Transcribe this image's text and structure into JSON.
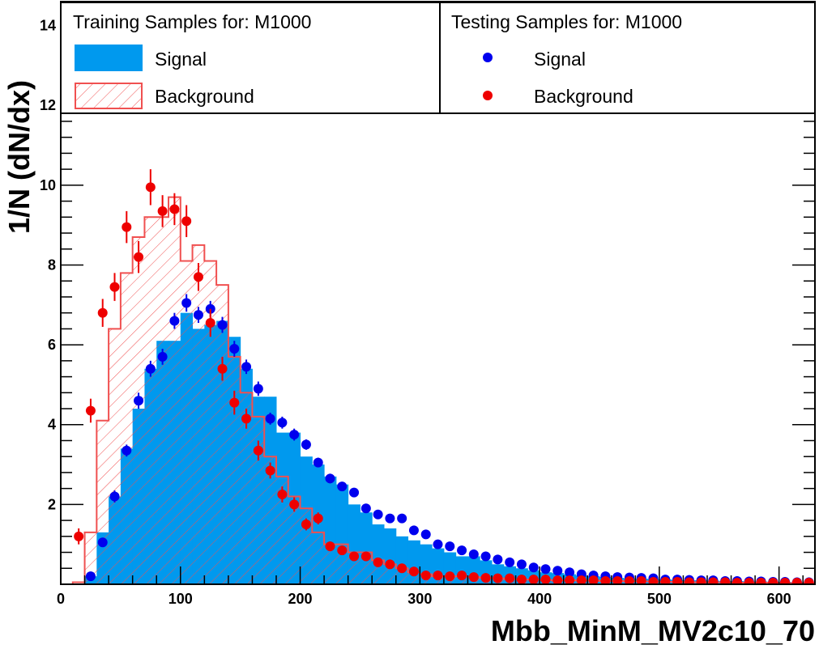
{
  "chart_data": {
    "type": "histogram",
    "xlabel": "Mbb_MinM_MV2c10_70",
    "ylabel": "1/N (dN/dx)",
    "xlim": [
      0,
      630
    ],
    "ylim": [
      0,
      14.6
    ],
    "x_ticks": [
      "0",
      "100",
      "200",
      "300",
      "400",
      "500",
      "600"
    ],
    "y_ticks": [
      "2",
      "4",
      "6",
      "8",
      "10",
      "12",
      "14"
    ],
    "bin_width": 10,
    "legend": {
      "training_title": "Training Samples for: M1000",
      "testing_title": "Testing Samples for: M1000",
      "training_entries": [
        "Signal",
        "Background"
      ],
      "testing_entries": [
        "Signal",
        "Background"
      ]
    },
    "colors": {
      "signal_fill": "#0099ee",
      "background_line": "#f05050",
      "testing_signal": "#0000ee",
      "testing_background": "#ee0000"
    },
    "training_signal": {
      "bin_edges_start": 20,
      "values": [
        0.2,
        1.3,
        2.2,
        3.4,
        4.4,
        5.4,
        6.1,
        6.1,
        6.8,
        6.4,
        6.5,
        6.6,
        6.2,
        5.4,
        4.7,
        4.7,
        3.8,
        3.8,
        3.2,
        3.0,
        2.7,
        2.5,
        2.0,
        1.8,
        1.5,
        1.4,
        1.2,
        1.1,
        1.0,
        0.9,
        0.8,
        0.7,
        0.7,
        0.6,
        0.5,
        0.45,
        0.4,
        0.35,
        0.3,
        0.28,
        0.25,
        0.22,
        0.2,
        0.18,
        0.16,
        0.15,
        0.14,
        0.13,
        0.12,
        0.11,
        0.1,
        0.1,
        0.09,
        0.08,
        0.08,
        0.07,
        0.07,
        0.06,
        0.06,
        0.05,
        0.05
      ]
    },
    "training_background": {
      "bin_edges_start": 10,
      "values": [
        0.05,
        1.3,
        4.1,
        6.4,
        7.8,
        8.7,
        9.2,
        9.2,
        9.7,
        8.1,
        8.5,
        8.1,
        7.5,
        5.7,
        4.8,
        4.2,
        3.2,
        2.7,
        2.2,
        1.9,
        1.3,
        1.0,
        1.0,
        0.8,
        0.8,
        0.6,
        0.5,
        0.4,
        0.3,
        0.25,
        0.2,
        0.2,
        0.2,
        0.18,
        0.16,
        0.15,
        0.13,
        0.12,
        0.12,
        0.11,
        0.1,
        0.1,
        0.09,
        0.09,
        0.08,
        0.08,
        0.07,
        0.07,
        0.07,
        0.06,
        0.06,
        0.05,
        0.05,
        0.05,
        0.05,
        0.04,
        0.04,
        0.04,
        0.04,
        0.03,
        0.03,
        0.03
      ]
    },
    "testing_signal": {
      "x": [
        25,
        35,
        45,
        55,
        65,
        75,
        85,
        95,
        105,
        115,
        125,
        135,
        145,
        155,
        165,
        175,
        185,
        195,
        205,
        215,
        225,
        235,
        245,
        255,
        265,
        275,
        285,
        295,
        305,
        315,
        325,
        335,
        345,
        355,
        365,
        375,
        385,
        395,
        405,
        415,
        425,
        435,
        445,
        455,
        465,
        475,
        485,
        495,
        505,
        515,
        525,
        535,
        545,
        555,
        565,
        575,
        585,
        595,
        605,
        615,
        625
      ],
      "y": [
        0.2,
        1.05,
        2.2,
        3.35,
        4.6,
        5.4,
        5.7,
        6.6,
        7.05,
        6.75,
        6.9,
        6.5,
        5.9,
        5.45,
        4.9,
        4.15,
        4.05,
        3.75,
        3.5,
        3.05,
        2.65,
        2.45,
        2.3,
        1.9,
        1.75,
        1.65,
        1.65,
        1.35,
        1.25,
        1.0,
        0.95,
        0.85,
        0.75,
        0.7,
        0.62,
        0.55,
        0.5,
        0.42,
        0.38,
        0.34,
        0.3,
        0.25,
        0.22,
        0.2,
        0.18,
        0.17,
        0.16,
        0.15,
        0.12,
        0.12,
        0.11,
        0.1,
        0.1,
        0.08,
        0.08,
        0.07,
        0.07,
        0.06,
        0.06,
        0.05,
        0.05
      ],
      "err": [
        0.05,
        0.1,
        0.15,
        0.15,
        0.2,
        0.2,
        0.2,
        0.2,
        0.22,
        0.2,
        0.2,
        0.2,
        0.2,
        0.18,
        0.18,
        0.15,
        0.15,
        0.15,
        0.13,
        0.12,
        0.12,
        0.1,
        0.1,
        0.1,
        0.08,
        0.08,
        0.08,
        0.07,
        0.07,
        0.06,
        0.06,
        0.05,
        0.05,
        0.05,
        0.04,
        0.04,
        0.04,
        0.03,
        0.03,
        0.03,
        0.03,
        0.02,
        0.02,
        0.02,
        0.02,
        0.02,
        0.02,
        0.02,
        0.02,
        0.02,
        0.02,
        0.02,
        0.02,
        0.02,
        0.02,
        0.02,
        0.02,
        0.02,
        0.02,
        0.02,
        0.02
      ]
    },
    "testing_background": {
      "x": [
        15,
        25,
        35,
        45,
        55,
        65,
        75,
        85,
        95,
        105,
        115,
        125,
        135,
        145,
        155,
        165,
        175,
        185,
        195,
        205,
        215,
        225,
        235,
        245,
        255,
        265,
        275,
        285,
        295,
        305,
        315,
        325,
        335,
        345,
        355,
        365,
        375,
        385,
        395,
        405,
        415,
        425,
        435,
        445,
        455,
        465,
        475,
        485,
        495,
        505,
        515,
        525,
        535,
        545,
        555,
        565,
        575,
        585,
        595,
        605,
        615,
        625
      ],
      "y": [
        1.2,
        4.35,
        6.8,
        7.45,
        8.95,
        8.2,
        9.95,
        9.35,
        9.4,
        9.1,
        7.7,
        6.55,
        5.4,
        4.55,
        4.15,
        3.35,
        2.85,
        2.25,
        2.0,
        1.5,
        1.65,
        0.95,
        0.85,
        0.7,
        0.7,
        0.55,
        0.5,
        0.4,
        0.32,
        0.22,
        0.22,
        0.2,
        0.22,
        0.18,
        0.16,
        0.15,
        0.15,
        0.12,
        0.12,
        0.12,
        0.1,
        0.1,
        0.1,
        0.1,
        0.08,
        0.08,
        0.08,
        0.08,
        0.06,
        0.06,
        0.06,
        0.05,
        0.05,
        0.05,
        0.05,
        0.04,
        0.04,
        0.04,
        0.04,
        0.04,
        0.04,
        0.04
      ],
      "err": [
        0.2,
        0.3,
        0.35,
        0.35,
        0.4,
        0.4,
        0.45,
        0.4,
        0.4,
        0.4,
        0.35,
        0.35,
        0.3,
        0.3,
        0.25,
        0.25,
        0.2,
        0.2,
        0.18,
        0.15,
        0.15,
        0.12,
        0.1,
        0.1,
        0.1,
        0.08,
        0.08,
        0.07,
        0.06,
        0.05,
        0.05,
        0.05,
        0.05,
        0.04,
        0.04,
        0.04,
        0.04,
        0.03,
        0.03,
        0.03,
        0.03,
        0.03,
        0.03,
        0.03,
        0.02,
        0.02,
        0.02,
        0.02,
        0.02,
        0.02,
        0.02,
        0.02,
        0.02,
        0.02,
        0.02,
        0.02,
        0.02,
        0.02,
        0.02,
        0.02,
        0.02,
        0.02
      ]
    }
  }
}
